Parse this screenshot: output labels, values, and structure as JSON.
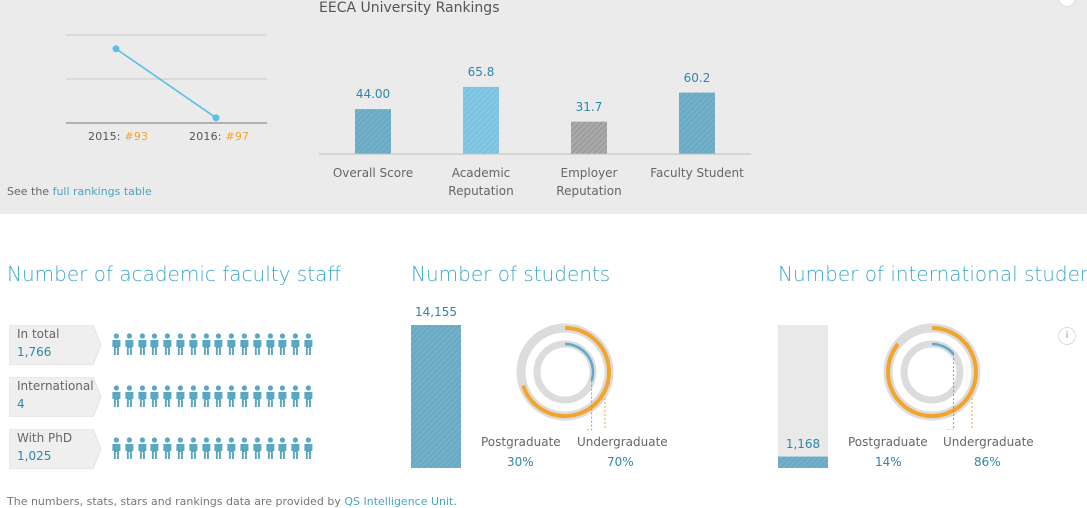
{
  "rankings": {
    "title": "EECA University Rankings",
    "see_prefix": "See the",
    "see_link": "full rankings table",
    "trend": [
      {
        "year_label": "2015:",
        "rank": "#93"
      },
      {
        "year_label": "2016:",
        "rank": "#97"
      }
    ]
  },
  "chart_data": [
    {
      "type": "line",
      "title": "",
      "x": [
        "2015",
        "2016"
      ],
      "series": [
        {
          "values": [
            93,
            97
          ]
        }
      ],
      "y_inverted": true
    },
    {
      "type": "bar",
      "title": "EECA University Rankings",
      "categories": [
        "Overall Score",
        "Academic Reputation",
        "Employer Reputation",
        "Faculty Student"
      ],
      "values": [
        44.0,
        65.8,
        31.7,
        60.2
      ],
      "value_labels": [
        "44.00",
        "65.8",
        "31.7",
        "60.2"
      ],
      "ylim": [
        0,
        100
      ]
    }
  ],
  "bar_cat_lines": [
    [
      "Overall Score",
      ""
    ],
    [
      "Academic",
      "Reputation"
    ],
    [
      "Employer",
      "Reputation"
    ],
    [
      "Faculty Student",
      ""
    ]
  ],
  "faculty": {
    "title": "Number of academic faculty staff",
    "rows": [
      {
        "label": "In total",
        "value": "1,766"
      },
      {
        "label": "International",
        "value": "4"
      },
      {
        "label": "With PhD",
        "value": "1,025"
      }
    ]
  },
  "students": {
    "title": "Number of students",
    "total": "14,155",
    "total_fill": 1.0,
    "postgraduate_label": "Postgraduate",
    "undergraduate_label": "Undergraduate",
    "postgraduate_pct": "30%",
    "undergraduate_pct": "70%",
    "postgraduate_share": 0.3,
    "undergraduate_share": 0.7
  },
  "international": {
    "title": "Number of international students",
    "total": "1,168",
    "total_fill": 0.08,
    "postgraduate_label": "Postgraduate",
    "undergraduate_label": "Undergraduate",
    "postgraduate_pct": "14%",
    "undergraduate_pct": "86%",
    "postgraduate_share": 0.14,
    "undergraduate_share": 0.86,
    "info_label": "i"
  },
  "footer": {
    "text": "The numbers, stats, stars and rankings data are provided by",
    "link": "QS Intelligence Unit",
    "period": "."
  },
  "colors": {
    "accent": "#4aa3c4",
    "bar": "#6aaac4",
    "bar_highlight": "#7cc3e2",
    "bar_grey": "#a7a7a7",
    "orange": "#f2a52a",
    "ring_grey": "#dcdcdc"
  }
}
